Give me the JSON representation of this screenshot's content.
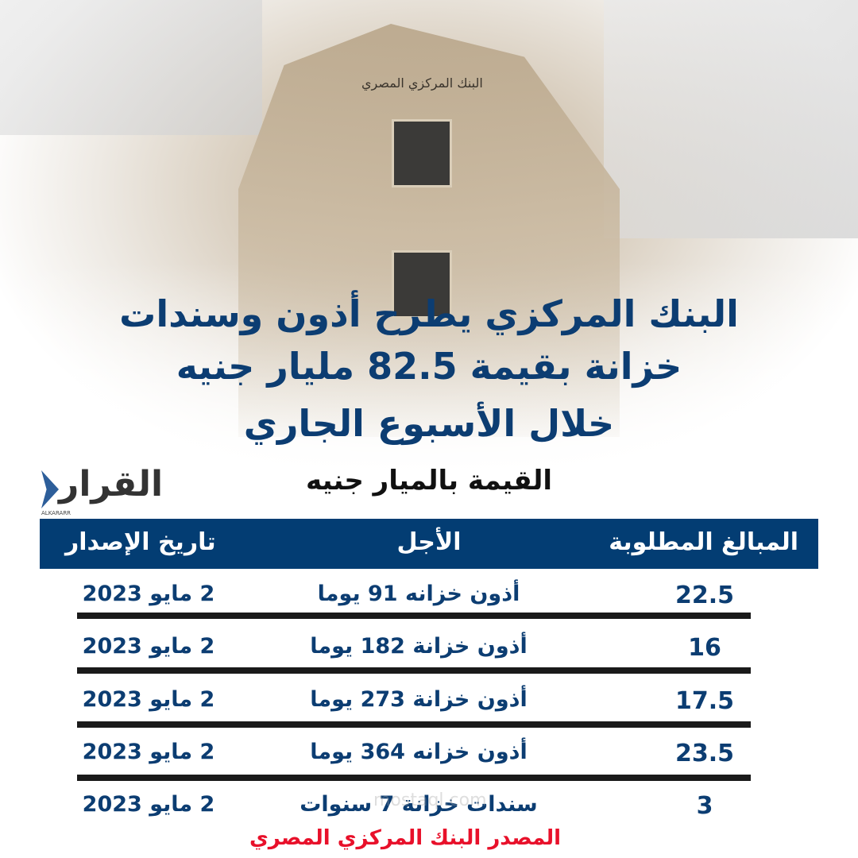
{
  "background": {
    "bank_sign": "البنك المركزي المصري"
  },
  "headline": {
    "line1": "البنك المركزي يطرح أذون وسندات",
    "line2": "خزانة بقيمة 82.5 مليار جنيه",
    "line3": "خلال الأسبوع الجاري"
  },
  "subtitle": "القيمة بالميار جنيه",
  "logo": {
    "text": "القرار",
    "latin": "ALKARARR"
  },
  "table": {
    "headers": {
      "amount": "المبالغ المطلوبة",
      "term": "الأجل",
      "date": "تاريخ الإصدار"
    },
    "rows": [
      {
        "amount": "22.5",
        "term": "أذون خزانه 91 يوما",
        "date": "2 مايو 2023"
      },
      {
        "amount": "16",
        "term": "أذون خزانة 182 يوما",
        "date": "2 مايو 2023"
      },
      {
        "amount": "17.5",
        "term": "أذون خزانة 273 يوما",
        "date": "2 مايو 2023"
      },
      {
        "amount": "23.5",
        "term": "أذون خزانه 364 يوما",
        "date": "2 مايو 2023"
      },
      {
        "amount": "3",
        "term": "سندات خزانة 7 سنوات",
        "date": "2 مايو 2023"
      }
    ]
  },
  "source": "المصدر البنك المركزي المصري",
  "watermark": "mostaql.com",
  "colors": {
    "header_bg": "#033d73",
    "title": "#0c3d72",
    "source": "#e8102a"
  }
}
